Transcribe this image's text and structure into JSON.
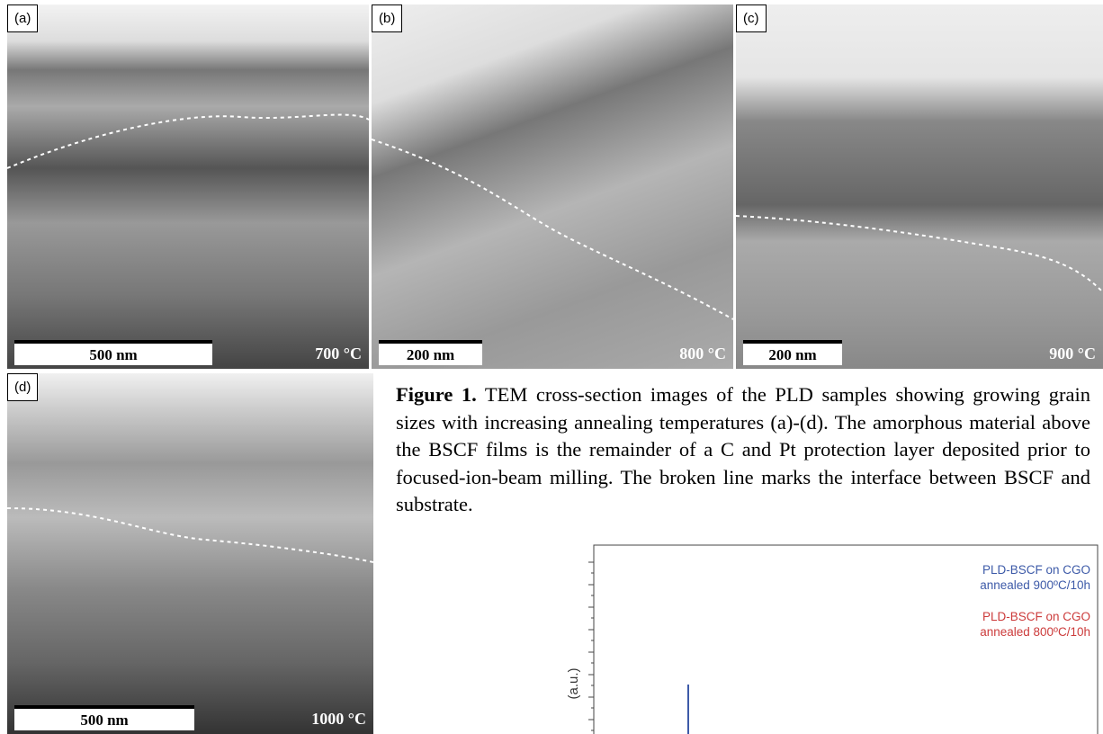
{
  "panels": [
    {
      "label": "(a)",
      "scale_bar": "500 nm",
      "temperature": "700 °C"
    },
    {
      "label": "(b)",
      "scale_bar": "200 nm",
      "temperature": "800 °C"
    },
    {
      "label": "(c)",
      "scale_bar": "200 nm",
      "temperature": "900 °C"
    },
    {
      "label": "(d)",
      "scale_bar": "500 nm",
      "temperature": "1000 °C"
    }
  ],
  "caption": {
    "label": "Figure 1.",
    "text": "TEM cross-section images of the PLD samples showing growing grain sizes with increasing annealing temperatures (a)-(d). The amorphous material above the BSCF films is the remainder of a C and Pt protection layer deposited prior to focused-ion-beam milling. The broken line marks the interface between BSCF and substrate."
  },
  "xrd_plot": {
    "y_label": "(a.u.)",
    "legend": [
      {
        "lines": [
          "PLD-BSCF on CGO",
          "annealed 900ºC/10h"
        ],
        "color": "#3d5aa8"
      },
      {
        "lines": [
          "PLD-BSCF on CGO",
          "annealed 800ºC/10h"
        ],
        "color": "#cc3b3b"
      }
    ]
  }
}
